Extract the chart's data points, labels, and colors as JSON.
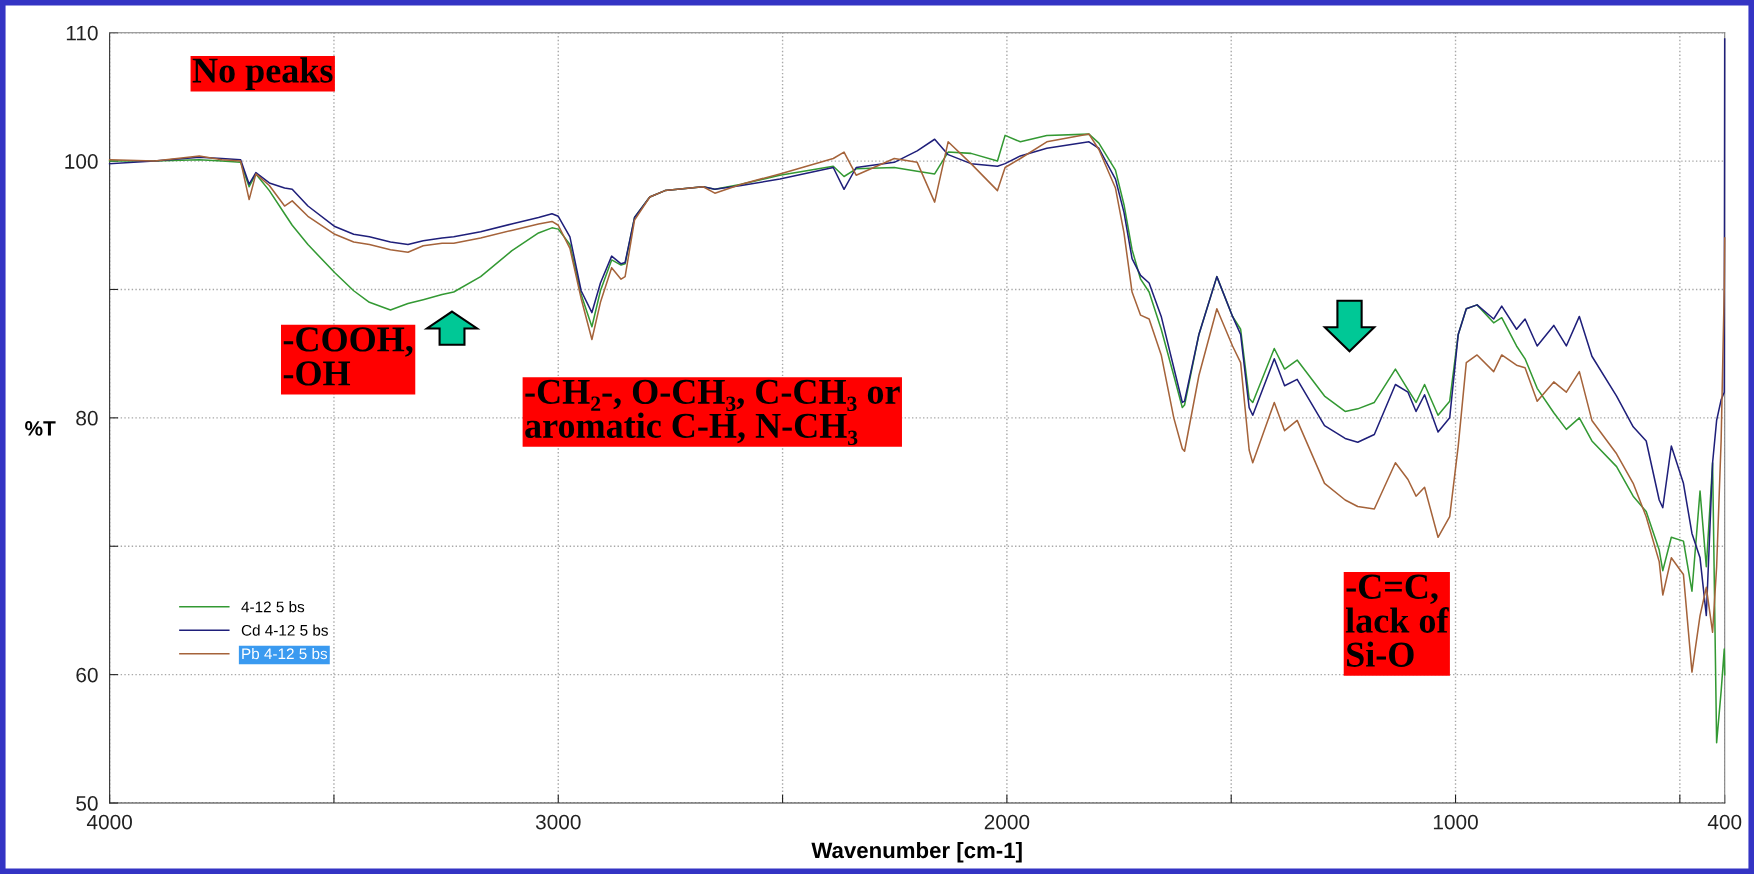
{
  "chart_data": {
    "type": "line",
    "x": [
      4000,
      3900,
      3800,
      3750,
      3708,
      3689,
      3674,
      3644,
      3610,
      3593,
      3558,
      3498,
      3456,
      3421,
      3374,
      3335,
      3301,
      3259,
      3233,
      3173,
      3104,
      3044,
      3014,
      3000,
      2974,
      2949,
      2925,
      2906,
      2881,
      2860,
      2851,
      2830,
      2796,
      2762,
      2677,
      2651,
      2592,
      2506,
      2387,
      2363,
      2336,
      2251,
      2200,
      2161,
      2131,
      2080,
      2021,
      2004,
      1970,
      1911,
      1817,
      1795,
      1758,
      1739,
      1721,
      1702,
      1683,
      1656,
      1628,
      1609,
      1604,
      1572,
      1532,
      1497,
      1479,
      1460,
      1452,
      1404,
      1381,
      1353,
      1292,
      1246,
      1218,
      1181,
      1134,
      1106,
      1088,
      1069,
      1039,
      1013,
      994,
      976,
      952,
      915,
      897,
      864,
      845,
      818,
      781,
      753,
      724,
      696,
      641,
      604,
      575,
      546,
      538,
      519,
      492,
      473,
      455,
      441,
      427,
      418,
      408,
      401,
      400
    ],
    "series": [
      {
        "name": "4-12 5 bs",
        "color": "#339933",
        "values": [
          100.0,
          100.0,
          100.1,
          100.0,
          99.9,
          98.0,
          99.0,
          97.7,
          95.9,
          95.0,
          93.5,
          91.3,
          89.9,
          89.0,
          88.4,
          88.9,
          89.2,
          89.6,
          89.8,
          91.0,
          93.0,
          94.4,
          94.8,
          94.7,
          93.5,
          89.6,
          87.1,
          89.9,
          92.3,
          91.9,
          92.0,
          95.6,
          97.2,
          97.7,
          98.0,
          97.8,
          98.2,
          98.9,
          99.6,
          98.8,
          99.4,
          99.5,
          99.2,
          99.0,
          100.7,
          100.6,
          100.0,
          102.0,
          101.5,
          102.0,
          102.1,
          101.4,
          99.3,
          96.6,
          93.1,
          90.8,
          89.8,
          86.9,
          83.3,
          80.8,
          81.0,
          86.5,
          91.0,
          87.9,
          86.9,
          81.5,
          81.2,
          85.4,
          83.8,
          84.5,
          81.7,
          80.5,
          80.7,
          81.2,
          83.8,
          82.2,
          81.2,
          82.6,
          80.2,
          81.3,
          86.5,
          88.5,
          88.8,
          87.4,
          87.8,
          85.6,
          84.6,
          82.3,
          80.4,
          79.1,
          80.0,
          78.2,
          76.2,
          73.9,
          72.7,
          69.7,
          68.1,
          70.7,
          70.4,
          66.5,
          74.3,
          68.4,
          76.5,
          54.7,
          58.7,
          62.0,
          60.0
        ]
      },
      {
        "name": "Cd 4-12 5 bs",
        "color": "#1f1f7a",
        "values": [
          99.8,
          100.0,
          100.3,
          100.2,
          100.1,
          98.2,
          99.1,
          98.3,
          97.9,
          97.8,
          96.5,
          94.9,
          94.3,
          94.1,
          93.7,
          93.5,
          93.8,
          94.0,
          94.1,
          94.5,
          95.1,
          95.6,
          95.9,
          95.7,
          94.1,
          89.9,
          88.2,
          90.5,
          92.6,
          92.0,
          92.1,
          95.6,
          97.2,
          97.7,
          98.0,
          97.8,
          98.1,
          98.6,
          99.5,
          97.8,
          99.5,
          99.9,
          100.8,
          101.7,
          100.5,
          99.8,
          99.6,
          99.8,
          100.4,
          101.0,
          101.5,
          101.0,
          98.6,
          96.0,
          92.4,
          91.1,
          90.5,
          87.9,
          83.9,
          81.2,
          81.3,
          86.5,
          91.0,
          87.9,
          86.5,
          80.8,
          80.2,
          84.6,
          82.5,
          83.0,
          79.4,
          78.4,
          78.1,
          78.7,
          82.6,
          82.0,
          80.5,
          81.8,
          78.9,
          80.0,
          86.5,
          88.5,
          88.8,
          87.7,
          88.7,
          86.9,
          87.7,
          85.6,
          87.2,
          85.6,
          87.9,
          84.8,
          81.7,
          79.3,
          78.2,
          73.6,
          73.0,
          77.8,
          74.9,
          71.0,
          69.1,
          64.6,
          76.5,
          79.8,
          81.4,
          82.0,
          109.5
        ]
      },
      {
        "name": "Pb 4-12 5 bs",
        "color": "#a5633a",
        "values": [
          100.1,
          100.0,
          100.4,
          100.1,
          100.0,
          97.0,
          99.0,
          98.1,
          96.5,
          96.9,
          95.7,
          94.3,
          93.7,
          93.5,
          93.1,
          92.9,
          93.4,
          93.6,
          93.6,
          94.0,
          94.6,
          95.1,
          95.3,
          95.0,
          93.2,
          89.3,
          86.1,
          89.0,
          91.7,
          90.8,
          91.0,
          95.4,
          97.2,
          97.7,
          98.0,
          97.5,
          98.2,
          99.0,
          100.2,
          100.7,
          98.9,
          100.2,
          99.9,
          96.8,
          101.5,
          99.8,
          97.7,
          99.5,
          100.2,
          101.5,
          102.1,
          100.9,
          97.9,
          94.4,
          89.8,
          88.0,
          87.7,
          84.9,
          80.0,
          77.6,
          77.4,
          83.3,
          88.5,
          85.6,
          84.3,
          77.5,
          76.5,
          81.2,
          79.0,
          79.8,
          74.9,
          73.6,
          73.1,
          72.9,
          76.5,
          75.2,
          73.9,
          74.6,
          70.7,
          72.3,
          77.8,
          84.3,
          84.9,
          83.6,
          84.9,
          84.1,
          83.9,
          81.3,
          82.8,
          82.0,
          83.6,
          79.8,
          77.2,
          74.9,
          72.3,
          68.8,
          66.2,
          69.1,
          67.8,
          60.2,
          64.6,
          66.8,
          63.3,
          68.4,
          78.2,
          90.0,
          94.0
        ]
      }
    ],
    "xlabel": "Wavenumber [cm-1]",
    "ylabel": "%T",
    "xlim": [
      4000,
      400
    ],
    "ylim": [
      50,
      110
    ],
    "xticks": [
      4000,
      {
        "value": 3500,
        "label": null
      },
      3000,
      {
        "value": 2500,
        "label": null
      },
      2000,
      {
        "value": 1500,
        "label": null
      },
      1000,
      {
        "value": 500,
        "label": null
      },
      400
    ],
    "yticks": [
      50,
      60,
      {
        "value": 70,
        "label": null
      },
      80,
      {
        "value": 90,
        "label": null
      },
      100,
      110
    ],
    "grid": true,
    "legend": "lower left",
    "line_style": "solid",
    "annotations": [
      "No peaks",
      "-COOH,\n-OH",
      "-CH₂-, O-CH₃, C-CH₃ or\naromatic C-H, N-CH₃",
      "-C=C,\nlack of\nSi-O"
    ]
  }
}
